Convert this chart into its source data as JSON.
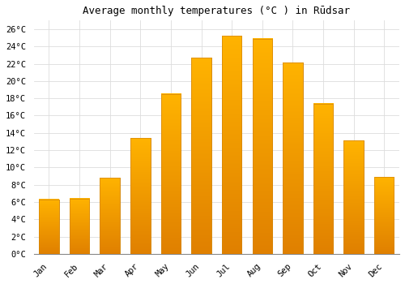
{
  "title": "Average monthly temperatures (°C ) in Rūdsar",
  "months": [
    "Jan",
    "Feb",
    "Mar",
    "Apr",
    "May",
    "Jun",
    "Jul",
    "Aug",
    "Sep",
    "Oct",
    "Nov",
    "Dec"
  ],
  "values": [
    6.3,
    6.4,
    8.8,
    13.4,
    18.5,
    22.7,
    25.2,
    24.9,
    22.1,
    17.4,
    13.1,
    8.9
  ],
  "bar_color_top": "#FFB300",
  "bar_color_bottom": "#E08000",
  "bar_edge_color": "#D4860A",
  "background_color": "#FFFFFF",
  "grid_color": "#DDDDDD",
  "ylim": [
    0,
    27
  ],
  "yticks": [
    0,
    2,
    4,
    6,
    8,
    10,
    12,
    14,
    16,
    18,
    20,
    22,
    24,
    26
  ],
  "title_fontsize": 9,
  "tick_fontsize": 7.5,
  "bar_width": 0.65
}
